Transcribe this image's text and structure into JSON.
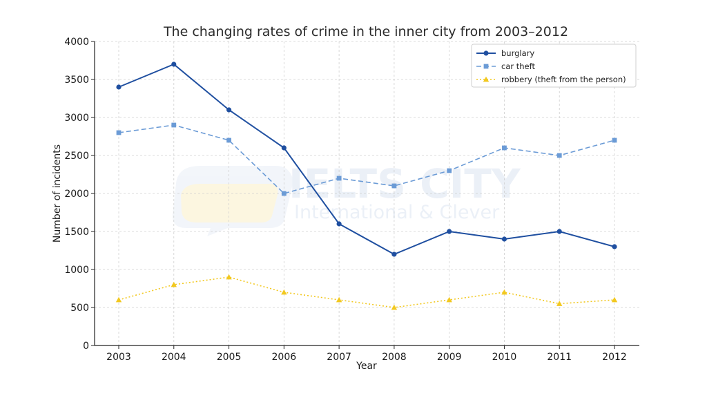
{
  "watermark": {
    "brand": "IELTS CITY",
    "tagline": "International & Clever"
  },
  "chart_data": {
    "type": "line",
    "title": "The changing rates of crime in the inner city from 2003–2012",
    "xlabel": "Year",
    "ylabel": "Number of incidents",
    "categories": [
      "2003",
      "2004",
      "2005",
      "2006",
      "2007",
      "2008",
      "2009",
      "2010",
      "2011",
      "2012"
    ],
    "ylim": [
      0,
      4000
    ],
    "yticks": [
      0,
      500,
      1000,
      1500,
      2000,
      2500,
      3000,
      3500,
      4000
    ],
    "grid": true,
    "legend_position": "top-right",
    "series": [
      {
        "name": "burglary",
        "values": [
          3400,
          3700,
          3100,
          2600,
          1600,
          1200,
          1500,
          1400,
          1500,
          1300
        ],
        "color": "#1f4fa0",
        "line_style": "solid",
        "marker": "circle"
      },
      {
        "name": "car theft",
        "values": [
          2800,
          2900,
          2700,
          2000,
          2200,
          2100,
          2300,
          2600,
          2500,
          2700
        ],
        "color": "#6b9bd6",
        "line_style": "dashed",
        "marker": "square"
      },
      {
        "name": "robbery (theft from the person)",
        "values": [
          600,
          800,
          900,
          700,
          600,
          500,
          600,
          700,
          550,
          600
        ],
        "color": "#f2c81f",
        "line_style": "dotted",
        "marker": "triangle"
      }
    ]
  }
}
